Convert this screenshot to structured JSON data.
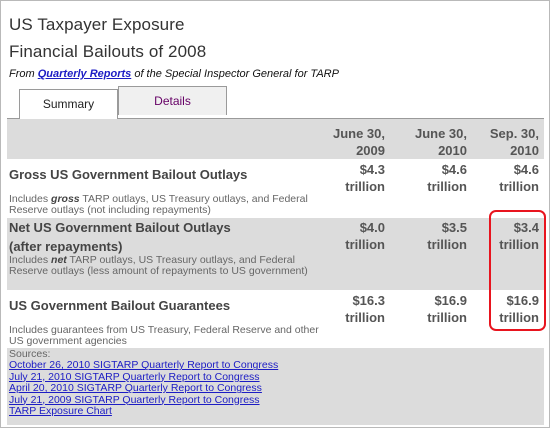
{
  "header": {
    "title": "US Taxpayer Exposure",
    "subtitle": "Financial Bailouts of 2008",
    "from_prefix": "From ",
    "from_link": "Quarterly Reports",
    "from_suffix": " of the Special Inspector General for TARP"
  },
  "tabs": {
    "summary": "Summary",
    "details": "Details"
  },
  "table": {
    "columns": [
      {
        "line1": "June 30,",
        "line2": "2009"
      },
      {
        "line1": "June 30,",
        "line2": "2010"
      },
      {
        "line1": "Sep. 30,",
        "line2": "2010"
      }
    ],
    "rows": [
      {
        "title_line1": "Gross US Government Bailout Outlays",
        "note_pre": "Includes ",
        "note_em": "gross",
        "note_post": " TARP outlays, US Treasury outlays, and Federal Reserve outlays (not including repayments)",
        "values": [
          {
            "amount": "$4.3",
            "unit": "trillion"
          },
          {
            "amount": "$4.6",
            "unit": "trillion"
          },
          {
            "amount": "$4.6",
            "unit": "trillion"
          }
        ]
      },
      {
        "title_line1": "Net US Government Bailout Outlays",
        "title_line2": "(after repayments)",
        "note_pre": "Includes ",
        "note_em": "net",
        "note_post": " TARP outlays, US Treasury outlays, and Federal Reserve outlays (less amount of repayments to US government)",
        "values": [
          {
            "amount": "$4.0",
            "unit": "trillion"
          },
          {
            "amount": "$3.5",
            "unit": "trillion"
          },
          {
            "amount": "$3.4",
            "unit": "trillion"
          }
        ]
      },
      {
        "title_line1": "US Government Bailout Guarantees",
        "note": "Includes guarantees from US Treasury, Federal Reserve and other US government agencies",
        "values": [
          {
            "amount": "$16.3",
            "unit": "trillion"
          },
          {
            "amount": "$16.9",
            "unit": "trillion"
          },
          {
            "amount": "$16.9",
            "unit": "trillion"
          }
        ]
      }
    ]
  },
  "sources": {
    "label": "Sources:",
    "links": [
      "October 26, 2010 SIGTARP Quarterly Report to Congress",
      "July 21, 2010 SIGTARP Quarterly Report to Congress",
      "April 20, 2010 SIGTARP Quarterly Report to Congress",
      "July 21, 2009 SIGTARP Quarterly Report to Congress",
      "TARP Exposure Chart"
    ]
  },
  "colors": {
    "link": "#1c1cc4",
    "band_gray": "#dcdcdc",
    "highlight": "#e8141e",
    "tab_details_text": "#660066"
  }
}
